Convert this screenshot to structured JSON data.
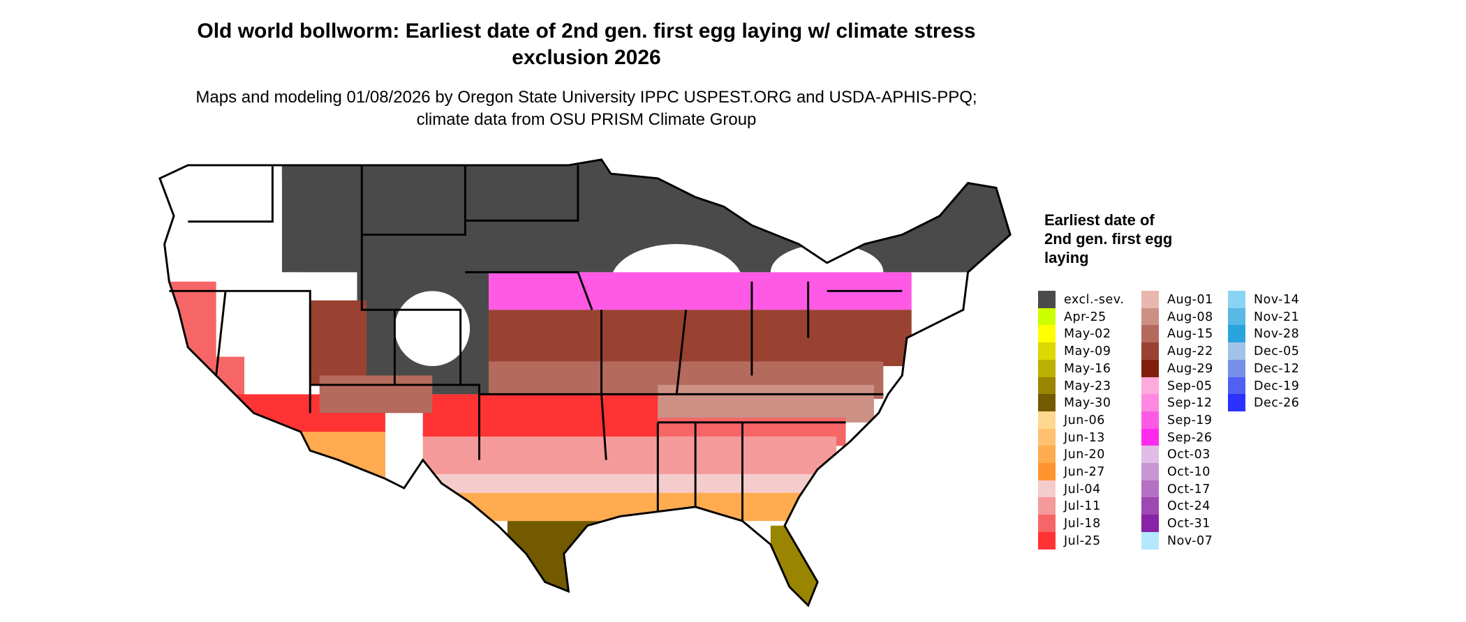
{
  "title": {
    "main": "Old world bollworm: Earliest date of 2nd gen. first egg laying w/ climate stress exclusion 2026",
    "subtitle": "Maps and modeling 01/08/2026 by Oregon State University IPPC USPEST.ORG and USDA-APHIS-PPQ; climate data from OSU PRISM Climate Group"
  },
  "legend": {
    "title": "Earliest date of 2nd gen. first egg laying",
    "items": [
      {
        "label": "excl.-sev.",
        "color": "#4a4a4a"
      },
      {
        "label": "Apr-25",
        "color": "#ccff00"
      },
      {
        "label": "May-02",
        "color": "#ffff00"
      },
      {
        "label": "May-09",
        "color": "#dcd800"
      },
      {
        "label": "May-16",
        "color": "#bcb000"
      },
      {
        "label": "May-23",
        "color": "#9a8500"
      },
      {
        "label": "May-30",
        "color": "#735a00"
      },
      {
        "label": "Jun-06",
        "color": "#ffd890"
      },
      {
        "label": "Jun-13",
        "color": "#ffc070"
      },
      {
        "label": "Jun-20",
        "color": "#ffab50"
      },
      {
        "label": "Jun-27",
        "color": "#ff9530"
      },
      {
        "label": "Jul-04",
        "color": "#f5cccc"
      },
      {
        "label": "Jul-11",
        "color": "#f59a9a"
      },
      {
        "label": "Jul-18",
        "color": "#f76666"
      },
      {
        "label": "Jul-25",
        "color": "#ff3333"
      },
      {
        "label": "Aug-01",
        "color": "#e8b8b0"
      },
      {
        "label": "Aug-08",
        "color": "#cc9085"
      },
      {
        "label": "Aug-15",
        "color": "#b46a5c"
      },
      {
        "label": "Aug-22",
        "color": "#9a4232"
      },
      {
        "label": "Aug-29",
        "color": "#80200c"
      },
      {
        "label": "Sep-05",
        "color": "#ffaadd"
      },
      {
        "label": "Sep-12",
        "color": "#ff88e0"
      },
      {
        "label": "Sep-19",
        "color": "#ff5ae5"
      },
      {
        "label": "Sep-26",
        "color": "#ff2aee"
      },
      {
        "label": "Oct-03",
        "color": "#e0bce6"
      },
      {
        "label": "Oct-10",
        "color": "#c896d2"
      },
      {
        "label": "Oct-17",
        "color": "#b470c2"
      },
      {
        "label": "Oct-24",
        "color": "#9e48b4"
      },
      {
        "label": "Oct-31",
        "color": "#8822a6"
      },
      {
        "label": "Nov-07",
        "color": "#b4e8fc"
      },
      {
        "label": "Nov-14",
        "color": "#88d4f2"
      },
      {
        "label": "Nov-21",
        "color": "#58b8e6"
      },
      {
        "label": "Nov-28",
        "color": "#2aa4dc"
      },
      {
        "label": "Dec-05",
        "color": "#a0c4e8"
      },
      {
        "label": "Dec-12",
        "color": "#7490e8"
      },
      {
        "label": "Dec-19",
        "color": "#5060f2"
      },
      {
        "label": "Dec-26",
        "color": "#2a32ff"
      }
    ]
  }
}
